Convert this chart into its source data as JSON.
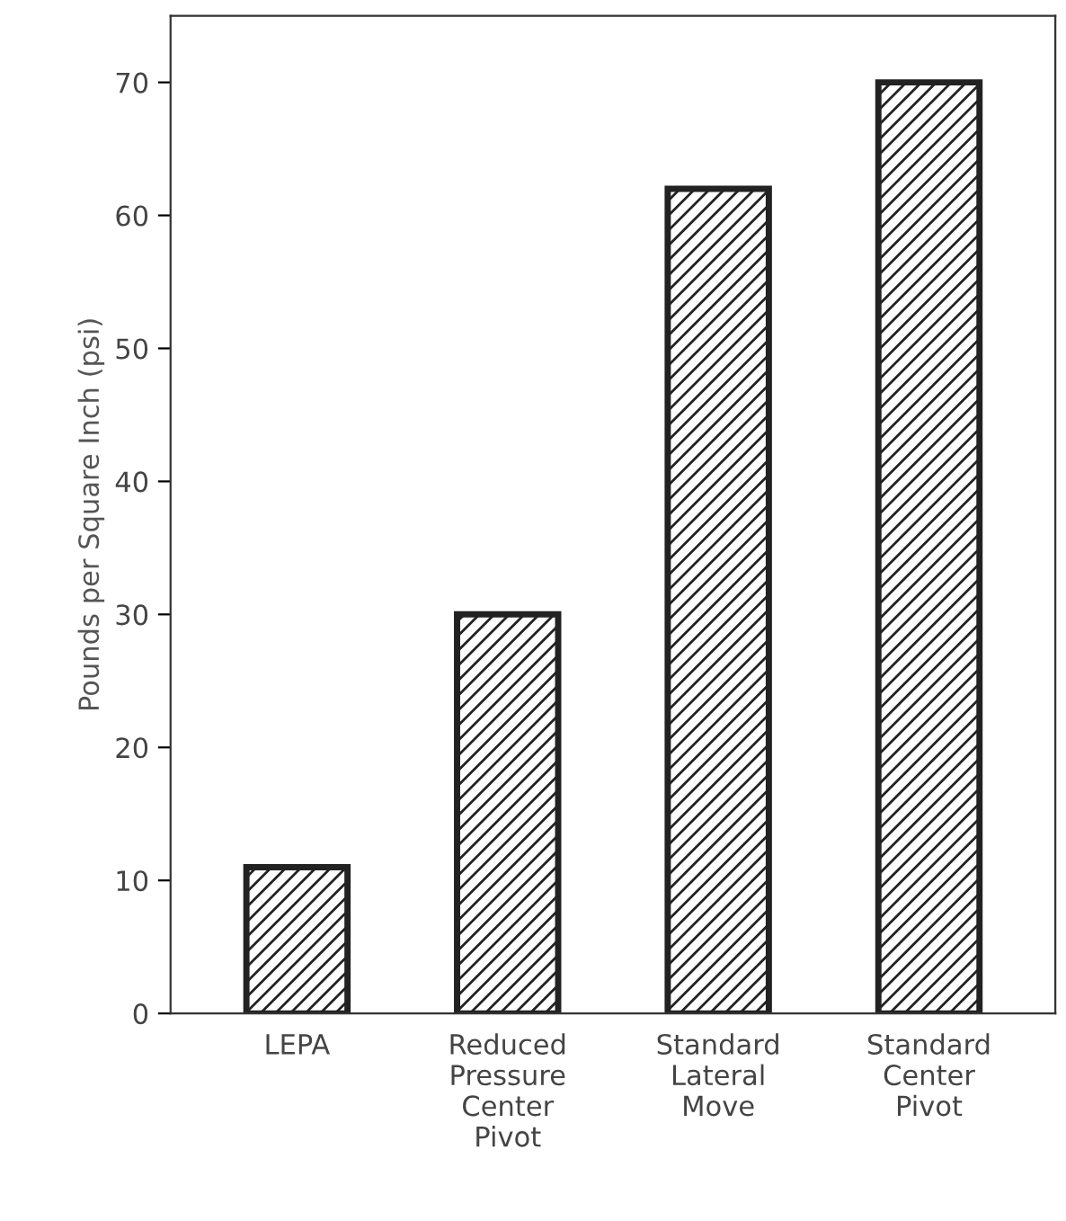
{
  "chart_data": {
    "type": "bar",
    "ylabel": "Pounds per Square Inch (psi)",
    "categories": [
      "LEPA",
      "Reduced\nPressure\nCenter\nPivot",
      "Standard\nLateral\nMove",
      "Standard\nCenter\nPivot"
    ],
    "values": [
      11,
      30,
      62,
      70
    ],
    "color": "#222222",
    "ylim": [
      0,
      75
    ],
    "yticks": [
      0,
      10,
      20,
      30,
      40,
      50,
      60,
      70
    ],
    "grid": false,
    "legend": false
  }
}
